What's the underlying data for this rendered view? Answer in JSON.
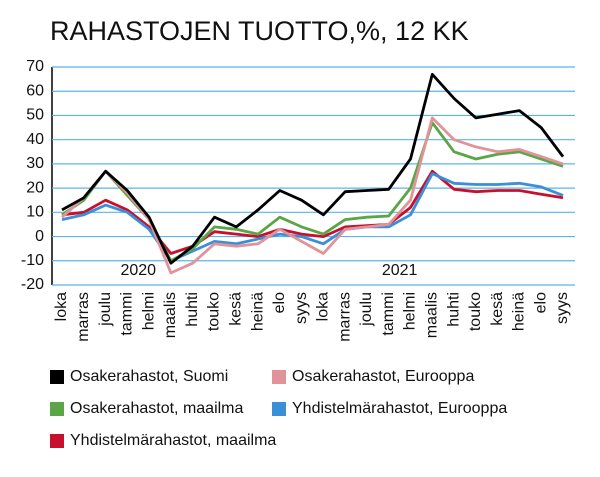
{
  "chart_data": {
    "type": "line",
    "title": "RAHASTOJEN TUOTTO,%, 12 KK",
    "categories": [
      "loka",
      "marras",
      "joulu",
      "tammi",
      "helmi",
      "maalis",
      "huhti",
      "touko",
      "kesä",
      "heinä",
      "elo",
      "syys",
      "loka",
      "marras",
      "joulu",
      "tammi",
      "helmi",
      "maalis",
      "huhti",
      "touko",
      "kesä",
      "heinä",
      "elo",
      "syys"
    ],
    "series": [
      {
        "name": "Osakerahastot, Suomi",
        "color": "#000000",
        "values": [
          11,
          16,
          27,
          19,
          8,
          -11,
          -4,
          8,
          4,
          11,
          19,
          15,
          9,
          18.5,
          19,
          19.5,
          32,
          67,
          57,
          49,
          50.5,
          52,
          45,
          33
        ]
      },
      {
        "name": "Osakerahastot, Eurooppa",
        "color": "#e0949a",
        "values": [
          8,
          16,
          27,
          18,
          7,
          -15,
          -11,
          -3,
          -4,
          -3,
          3,
          -2,
          -7,
          3,
          4,
          5,
          15,
          49,
          40,
          37,
          35,
          36,
          33,
          30
        ]
      },
      {
        "name": "Osakerahastot, maailma",
        "color": "#5aa545",
        "values": [
          9,
          15,
          27,
          17,
          7,
          -10,
          -5,
          4,
          3,
          1,
          8,
          4,
          1,
          7,
          8,
          8.5,
          20,
          47,
          35,
          32,
          34,
          35,
          32,
          29
        ]
      },
      {
        "name": "Yhdistelmärahastot, Eurooppa",
        "color": "#3a8fd8",
        "values": [
          7,
          9,
          13,
          10,
          3,
          -10,
          -6,
          -2,
          -3,
          -1,
          1,
          0,
          -3,
          3,
          4,
          4,
          9,
          26,
          22,
          21.5,
          21.5,
          22,
          20.5,
          17
        ]
      },
      {
        "name": "Yhdistelmärahastot, maailma",
        "color": "#c8102e",
        "values": [
          9,
          10,
          15,
          11,
          4,
          -7,
          -4,
          2,
          1,
          0,
          3,
          1,
          0,
          4,
          4.5,
          5,
          12,
          27,
          19.5,
          18.5,
          19,
          19,
          17.5,
          16
        ]
      }
    ],
    "annotations": [
      "2020",
      "2021"
    ],
    "ylim": [
      -20,
      70
    ],
    "yticks": [
      -20,
      -10,
      0,
      10,
      20,
      30,
      40,
      50,
      60,
      70
    ],
    "grid": true
  }
}
